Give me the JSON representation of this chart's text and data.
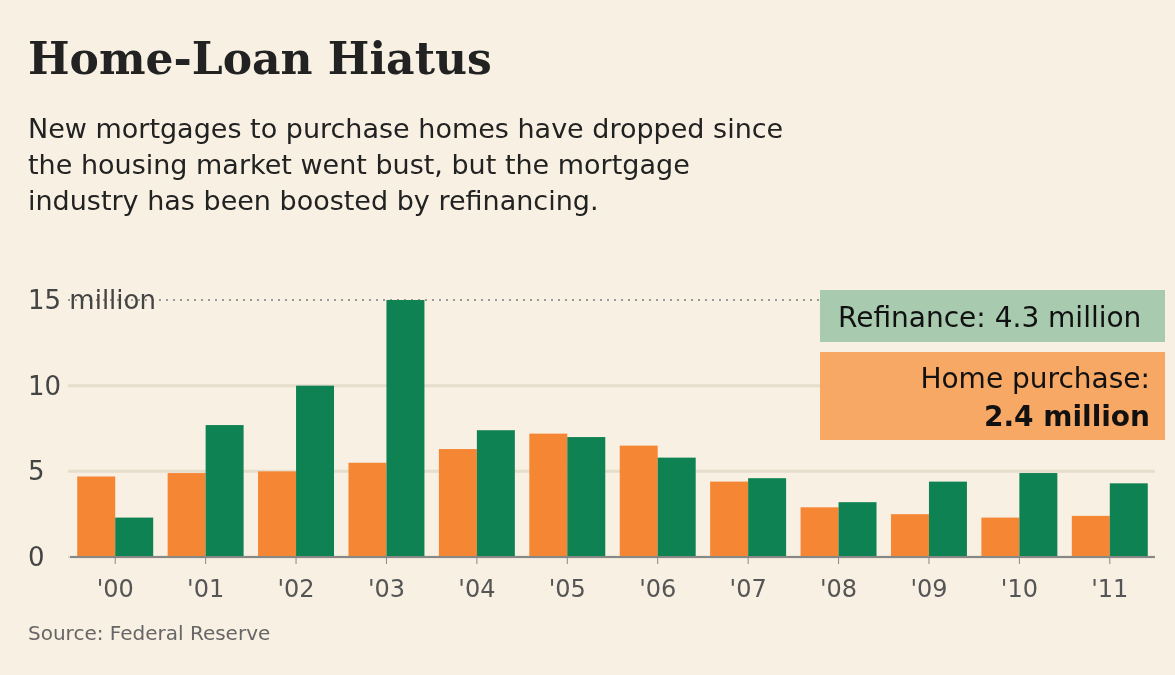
{
  "chart_data": {
    "type": "bar",
    "title": "Home-Loan Hiatus",
    "subtitle": "New mortgages to purchase homes have dropped since the housing market went bust, but the mortgage industry has been boosted by refinancing.",
    "categories": [
      "'00",
      "'01",
      "'02",
      "'03",
      "'04",
      "'05",
      "'06",
      "'07",
      "'08",
      "'09",
      "'10",
      "'11"
    ],
    "series": [
      {
        "color": "#f58634",
        "values": [
          4.7,
          4.9,
          5.0,
          5.5,
          6.3,
          7.2,
          6.5,
          4.4,
          2.9,
          2.5,
          2.3,
          2.4
        ]
      },
      {
        "color": "#0e8253",
        "values": [
          2.3,
          7.7,
          10.0,
          15.0,
          7.4,
          7.0,
          5.8,
          4.6,
          3.2,
          4.4,
          4.9,
          4.3
        ]
      }
    ],
    "ylim": [
      0,
      15
    ],
    "yticks": [
      0,
      5,
      10,
      {
        "value": 15,
        "label": "15 million"
      }
    ],
    "grid": "y",
    "annotations": [
      "Refinance: 4.3 million",
      "Home purchase: 2.4 million",
      "Source: Federal Reserve"
    ]
  }
}
